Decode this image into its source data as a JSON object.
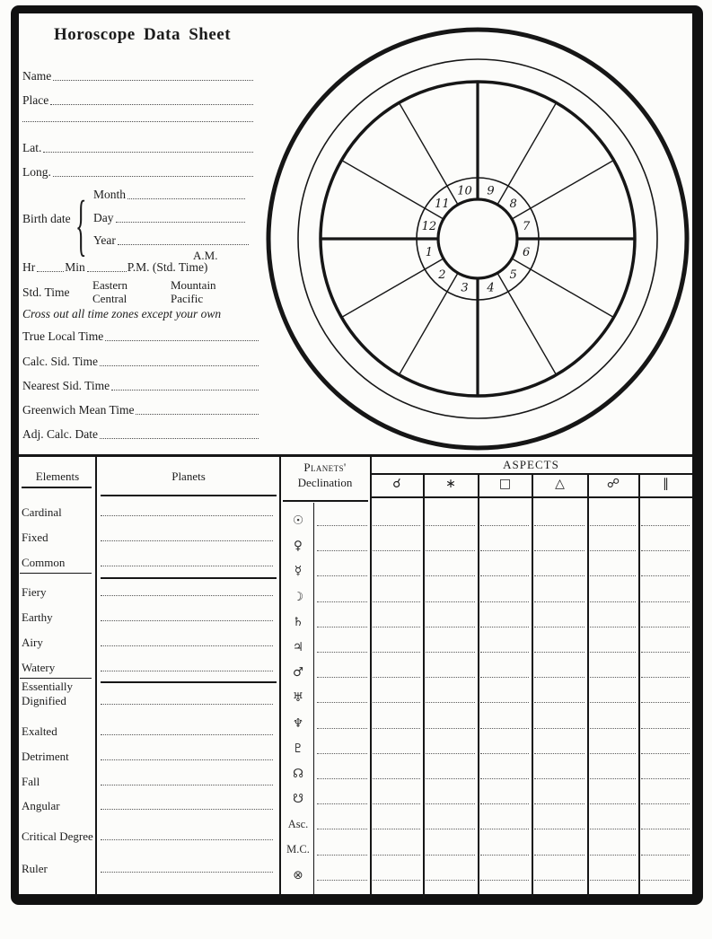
{
  "title": "Horoscope Data Sheet",
  "form": {
    "name_label": "Name",
    "place_label": "Place",
    "lat_label": "Lat.",
    "long_label": "Long.",
    "birth_date_label": "Birth date",
    "brace_glyph": "{",
    "month_label": "Month",
    "day_label": "Day",
    "year_label": "Year",
    "am_label": "A.M.",
    "hr_label": "Hr",
    "min_label": "Min",
    "pm_label": "P.M. (Std. Time)",
    "std_time_label": "Std. Time",
    "zones": [
      "Eastern",
      "Central",
      "Mountain",
      "Pacific"
    ],
    "note": "Cross out all time zones except your own",
    "true_local_label": "True Local Time",
    "calc_sid_label": "Calc. Sid. Time",
    "nearest_sid_label": "Nearest Sid. Time",
    "gmt_label": "Greenwich Mean Time",
    "adj_calc_label": "Adj. Calc. Date"
  },
  "wheel": {
    "house_numbers": [
      "1",
      "2",
      "3",
      "4",
      "5",
      "6",
      "7",
      "8",
      "9",
      "10",
      "11",
      "12"
    ]
  },
  "table": {
    "elements_header": "Elements",
    "planets_header": "Planets",
    "declination_header_line1": "Planets'",
    "declination_header_line2": "Declination",
    "aspects_header": "ASPECTS",
    "aspect_columns": [
      {
        "name": "conjunction",
        "symbol": "☌"
      },
      {
        "name": "sextile",
        "symbol": "∗"
      },
      {
        "name": "square",
        "symbol": "□"
      },
      {
        "name": "trine",
        "symbol": "△"
      },
      {
        "name": "opposition",
        "symbol": "☍"
      },
      {
        "name": "parallel",
        "symbol": "∥"
      }
    ],
    "element_rows": [
      {
        "label": "Cardinal"
      },
      {
        "label": "Fixed"
      },
      {
        "label": "Common"
      },
      {
        "label": "Fiery"
      },
      {
        "label": "Earthy"
      },
      {
        "label": "Airy"
      },
      {
        "label": "Watery"
      },
      {
        "label": "Essentially Dignified"
      },
      {
        "label": "Exalted"
      },
      {
        "label": "Detriment"
      },
      {
        "label": "Fall"
      },
      {
        "label": "Angular"
      },
      {
        "label": "Critical Degree"
      },
      {
        "label": "Ruler"
      }
    ],
    "declination_rows": [
      {
        "name": "sun",
        "symbol": "☉"
      },
      {
        "name": "venus",
        "symbol": "♀"
      },
      {
        "name": "mercury",
        "symbol": "☿"
      },
      {
        "name": "moon",
        "symbol": "☽"
      },
      {
        "name": "saturn",
        "symbol": "♄"
      },
      {
        "name": "jupiter",
        "symbol": "♃"
      },
      {
        "name": "mars",
        "symbol": "♂"
      },
      {
        "name": "uranus",
        "symbol": "♅"
      },
      {
        "name": "neptune",
        "symbol": "♆"
      },
      {
        "name": "pluto",
        "symbol": "♇"
      },
      {
        "name": "north-node",
        "symbol": "☊"
      },
      {
        "name": "south-node",
        "symbol": "☋"
      },
      {
        "name": "ascendant",
        "symbol": "Asc."
      },
      {
        "name": "midheaven",
        "symbol": "M.C."
      },
      {
        "name": "part-of-fortune",
        "symbol": "⊗"
      }
    ]
  }
}
